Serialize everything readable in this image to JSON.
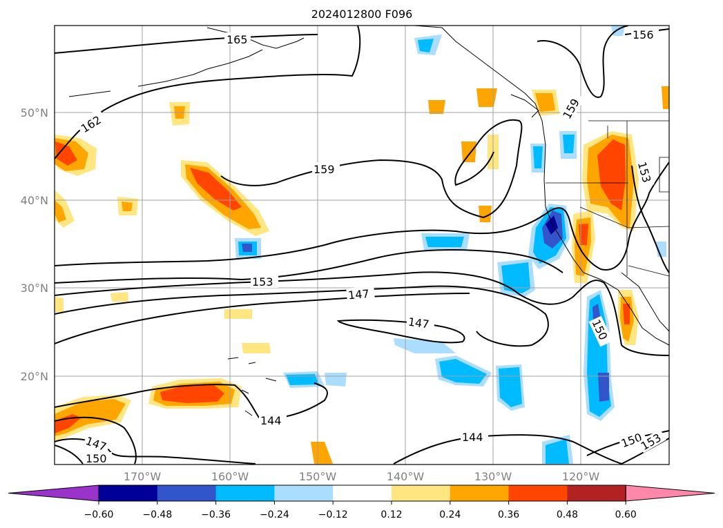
{
  "title": "2024012800 F096",
  "lat_ticks": [
    "50°N",
    "40°N",
    "30°N",
    "20°N"
  ],
  "lon_ticks": [
    "170°W",
    "160°W",
    "150°W",
    "140°W",
    "130°W",
    "120°W"
  ],
  "colorbar": {
    "ticks": [
      "−0.60",
      "−0.48",
      "−0.36",
      "−0.24",
      "−0.12",
      "0.12",
      "0.24",
      "0.36",
      "0.48",
      "0.60"
    ],
    "colors": [
      "#9933cc",
      "#000099",
      "#3355cc",
      "#00bbff",
      "#aaddff",
      "#ffffff",
      "#ffe680",
      "#ffa500",
      "#ff4500",
      "#b22222",
      "#ff88aa"
    ]
  },
  "contour_labels": [
    "165",
    "162",
    "159",
    "159",
    "156",
    "153",
    "153",
    "150",
    "150",
    "153",
    "147",
    "147",
    "144",
    "144",
    "147",
    "150"
  ],
  "colors": {
    "warm_light": "#ffe680",
    "warm_mid": "#ffa500",
    "warm_strong": "#ff4500",
    "cold_light": "#aaddff",
    "cold_mid": "#00bbff",
    "cold_strong": "#3355cc",
    "cold_deep": "#000099"
  }
}
